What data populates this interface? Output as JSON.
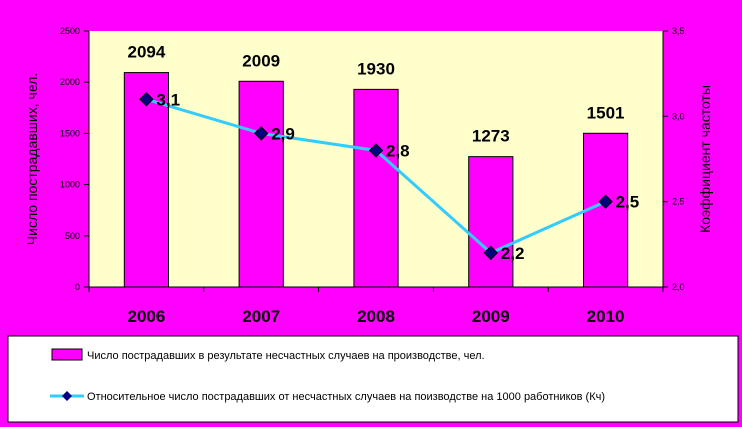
{
  "colors": {
    "background": "#FF00FF",
    "plot_area": "#FFFFCC",
    "bar_fill": "#FF00FF",
    "line": "#33CCFF",
    "marker": "#000080",
    "legend_bg": "#FFFFFF"
  },
  "chart_data": {
    "type": "bar",
    "categories": [
      "2006",
      "2007",
      "2008",
      "2009",
      "2010"
    ],
    "series": [
      {
        "name": "Число пострадавших в результате несчастных случаев на производстве, чел.",
        "kind": "bar",
        "axis": "left",
        "values": [
          2094,
          2009,
          1930,
          1273,
          1501
        ],
        "labels": [
          "2094",
          "2009",
          "1930",
          "1273",
          "1501"
        ]
      },
      {
        "name": "Относительное число пострадавших от несчастных случаев на поизводстве на 1000 работников (Кч)",
        "kind": "line",
        "axis": "right",
        "values": [
          3.1,
          2.9,
          2.8,
          2.2,
          2.5
        ],
        "labels": [
          "3,1",
          "2,9",
          "2,8",
          "2,2",
          "2,5"
        ]
      }
    ],
    "ylabel": "Число пострадавших, чел.",
    "y2label": "Коэффициент частоты",
    "ylim": [
      0,
      2500
    ],
    "y2lim": [
      2.0,
      3.5
    ],
    "yticks": [
      "0",
      "500",
      "1000",
      "1500",
      "2000",
      "2500"
    ],
    "y2ticks": [
      "2,0",
      "2,5",
      "3,0",
      "3,5"
    ],
    "grid": false,
    "legend_position": "bottom"
  }
}
